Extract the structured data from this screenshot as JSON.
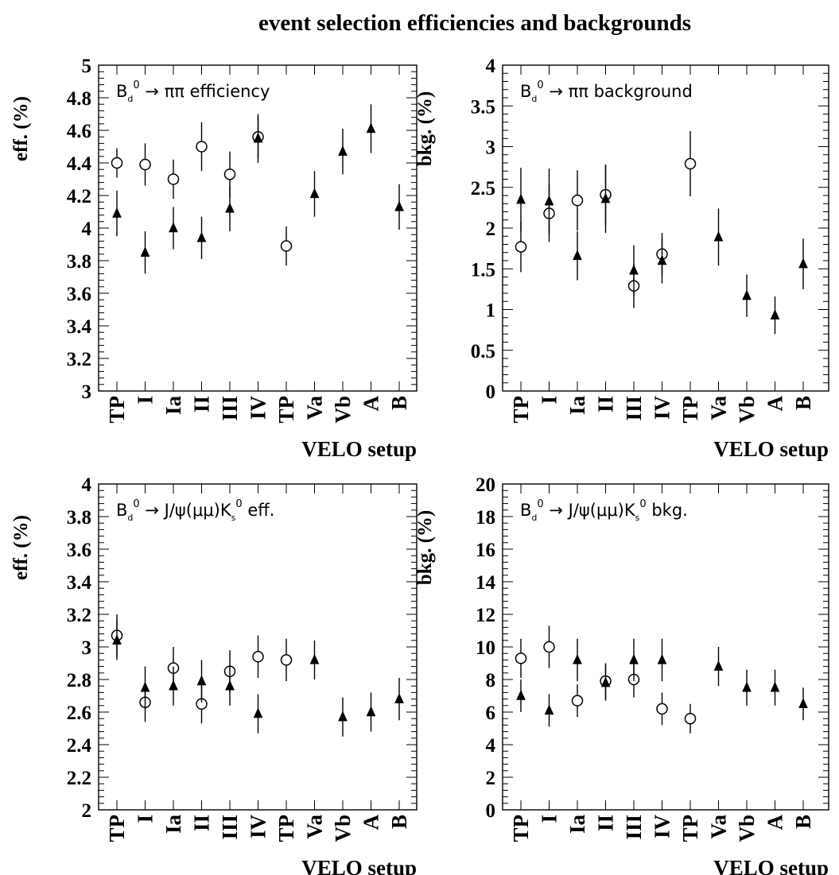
{
  "figure_title": "event selection efficiencies and backgrounds",
  "colors": {
    "ink": "#000000",
    "background": "#ffffff"
  },
  "markers": {
    "open": "open-circle",
    "filled": "filled-triangle"
  },
  "chart_data": [
    {
      "type": "scatter",
      "annotation": {
        "prefix": "B",
        "sub": "d",
        "sup": "0",
        "arrow": "→",
        "suffix": "ππ efficiency"
      },
      "ylabel": "eff. (%)",
      "xlabel": "VELO setup",
      "categories": [
        "TP",
        "I",
        "Ia",
        "II",
        "III",
        "IV",
        "TP",
        "Va",
        "Vb",
        "A",
        "B"
      ],
      "ylim": [
        3,
        5
      ],
      "yticks": [
        "3",
        "3.2",
        "3.4",
        "3.6",
        "3.8",
        "4",
        "4.2",
        "4.4",
        "4.6",
        "4.8",
        "5"
      ],
      "series": [
        {
          "marker": "open-circle",
          "values": [
            4.4,
            4.39,
            4.3,
            4.5,
            4.33,
            4.56,
            3.89,
            null,
            null,
            null,
            null
          ],
          "errors": [
            0.09,
            0.13,
            0.12,
            0.15,
            0.14,
            0.13,
            0.12,
            null,
            null,
            null,
            null
          ]
        },
        {
          "marker": "filled-triangle",
          "values": [
            4.09,
            3.85,
            4.0,
            3.94,
            4.12,
            4.55,
            null,
            4.21,
            4.47,
            4.61,
            4.13
          ],
          "errors": [
            0.14,
            0.13,
            0.13,
            0.13,
            0.14,
            0.15,
            null,
            0.14,
            0.14,
            0.15,
            0.14
          ]
        }
      ]
    },
    {
      "type": "scatter",
      "annotation": {
        "prefix": "B",
        "sub": "d",
        "sup": "0",
        "arrow": "→",
        "suffix": "ππ background"
      },
      "ylabel": "bkg. (%)",
      "xlabel": "VELO setup",
      "categories": [
        "TP",
        "I",
        "Ia",
        "II",
        "III",
        "IV",
        "TP",
        "Va",
        "Vb",
        "A",
        "B"
      ],
      "ylim": [
        0,
        4
      ],
      "yticks": [
        "0",
        "0.5",
        "1",
        "1.5",
        "2",
        "2.5",
        "3",
        "3.5",
        "4"
      ],
      "series": [
        {
          "marker": "open-circle",
          "values": [
            1.77,
            2.18,
            2.34,
            2.41,
            1.29,
            1.68,
            2.79,
            null,
            null,
            null,
            null
          ],
          "errors": [
            0.31,
            0.35,
            0.37,
            0.37,
            0.27,
            0.26,
            0.4,
            null,
            null,
            null,
            null
          ]
        },
        {
          "marker": "filled-triangle",
          "values": [
            2.35,
            2.33,
            1.66,
            2.36,
            1.48,
            1.6,
            null,
            1.89,
            1.17,
            0.93,
            1.56
          ],
          "errors": [
            0.39,
            0.4,
            0.3,
            0.42,
            0.31,
            0.28,
            null,
            0.35,
            0.26,
            0.23,
            0.31
          ]
        }
      ]
    },
    {
      "type": "scatter",
      "annotation": {
        "prefix": "B",
        "sub": "d",
        "sup": "0",
        "arrow": "→",
        "suffix": "J/ψ(μμ)K",
        "sub2": "s",
        "sup2": "0",
        "tail": " eff."
      },
      "ylabel": "eff. (%)",
      "xlabel": "VELO setup",
      "categories": [
        "TP",
        "I",
        "Ia",
        "II",
        "III",
        "IV",
        "TP",
        "Va",
        "Vb",
        "A",
        "B"
      ],
      "ylim": [
        2,
        4
      ],
      "yticks": [
        "2",
        "2.2",
        "2.4",
        "2.6",
        "2.8",
        "3",
        "3.2",
        "3.4",
        "3.6",
        "3.8",
        "4"
      ],
      "series": [
        {
          "marker": "open-circle",
          "values": [
            3.07,
            2.66,
            2.87,
            2.65,
            2.85,
            2.94,
            2.92,
            null,
            null,
            null,
            null
          ],
          "errors": [
            0.13,
            0.12,
            0.13,
            0.12,
            0.13,
            0.13,
            0.13,
            null,
            null,
            null,
            null
          ]
        },
        {
          "marker": "filled-triangle",
          "values": [
            3.04,
            2.75,
            2.76,
            2.79,
            2.76,
            2.59,
            null,
            2.92,
            2.57,
            2.6,
            2.68
          ],
          "errors": [
            0.12,
            0.13,
            0.12,
            0.13,
            0.12,
            0.12,
            null,
            0.12,
            0.12,
            0.12,
            0.13
          ]
        }
      ]
    },
    {
      "type": "scatter",
      "annotation": {
        "prefix": "B",
        "sub": "d",
        "sup": "0",
        "arrow": "→",
        "suffix": "J/ψ(μμ)K",
        "sub2": "s",
        "sup2": "0",
        "tail": " bkg."
      },
      "ylabel": "bkg. (%)",
      "xlabel": "VELO setup",
      "categories": [
        "TP",
        "I",
        "Ia",
        "II",
        "III",
        "IV",
        "TP",
        "Va",
        "Vb",
        "A",
        "B"
      ],
      "ylim": [
        0,
        20
      ],
      "yticks": [
        "0",
        "2",
        "4",
        "6",
        "8",
        "10",
        "12",
        "14",
        "16",
        "18",
        "20"
      ],
      "series": [
        {
          "marker": "open-circle",
          "values": [
            9.3,
            10.0,
            6.7,
            7.9,
            8.0,
            6.2,
            5.6,
            null,
            null,
            null,
            null
          ],
          "errors": [
            1.2,
            1.3,
            1.0,
            1.1,
            1.1,
            1.0,
            0.9,
            null,
            null,
            null,
            null
          ]
        },
        {
          "marker": "filled-triangle",
          "values": [
            7.0,
            6.1,
            9.2,
            7.8,
            9.2,
            9.2,
            null,
            8.8,
            7.5,
            7.5,
            6.5
          ],
          "errors": [
            1.0,
            1.0,
            1.3,
            1.1,
            1.3,
            1.3,
            null,
            1.2,
            1.1,
            1.1,
            1.0
          ]
        }
      ]
    }
  ]
}
